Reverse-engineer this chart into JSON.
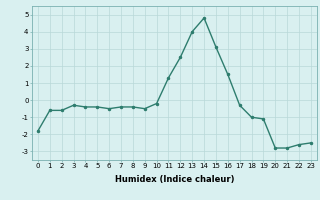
{
  "x": [
    0,
    1,
    2,
    3,
    4,
    5,
    6,
    7,
    8,
    9,
    10,
    11,
    12,
    13,
    14,
    15,
    16,
    17,
    18,
    19,
    20,
    21,
    22,
    23
  ],
  "y": [
    -1.8,
    -0.6,
    -0.6,
    -0.3,
    -0.4,
    -0.4,
    -0.5,
    -0.4,
    -0.4,
    -0.5,
    -0.2,
    1.3,
    2.5,
    4.0,
    4.8,
    3.1,
    1.5,
    -0.3,
    -1.0,
    -1.1,
    -2.8,
    -2.8,
    -2.6,
    -2.5
  ],
  "line_color": "#2e7d6e",
  "marker": ".",
  "markersize": 3,
  "linewidth": 1.0,
  "bg_color": "#d9f0f0",
  "grid_color": "#b8d8d8",
  "xlabel": "Humidex (Indice chaleur)",
  "xlabel_fontsize": 6,
  "xlabel_fontweight": "bold",
  "yticks": [
    -3,
    -2,
    -1,
    0,
    1,
    2,
    3,
    4,
    5
  ],
  "xticks": [
    0,
    1,
    2,
    3,
    4,
    5,
    6,
    7,
    8,
    9,
    10,
    11,
    12,
    13,
    14,
    15,
    16,
    17,
    18,
    19,
    20,
    21,
    22,
    23
  ],
  "ylim": [
    -3.5,
    5.5
  ],
  "xlim": [
    -0.5,
    23.5
  ],
  "tick_fontsize": 5
}
